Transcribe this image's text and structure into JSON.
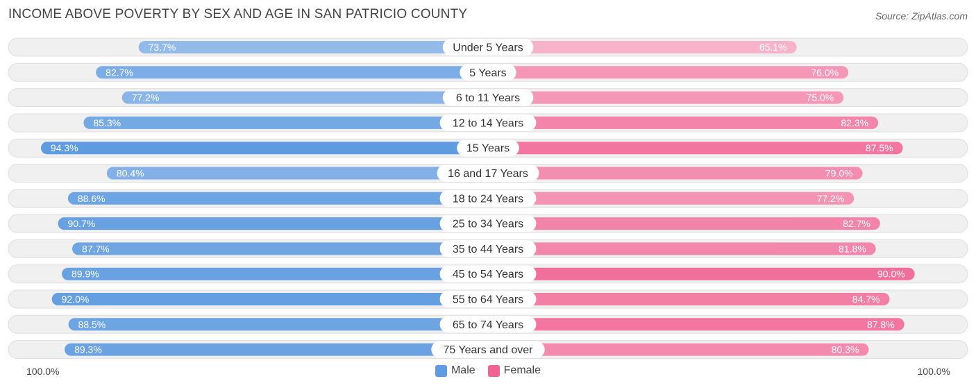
{
  "title": "INCOME ABOVE POVERTY BY SEX AND AGE IN SAN PATRICIO COUNTY",
  "source": "Source: ZipAtlas.com",
  "axis": {
    "left_label": "100.0%",
    "right_label": "100.0%"
  },
  "legend": {
    "male_label": "Male",
    "female_label": "Female"
  },
  "colors": {
    "male_light": "#a9c8ee",
    "male_dark": "#5e9be0",
    "female_light": "#f8b3cb",
    "female_dark": "#f06593",
    "track": "#f0f0f0",
    "track_border": "#dedede"
  },
  "chart_data": {
    "type": "bar",
    "orientation": "diverging-horizontal",
    "title": "INCOME ABOVE POVERTY BY SEX AND AGE IN SAN PATRICIO COUNTY",
    "xlim": [
      0,
      100
    ],
    "unit": "%",
    "categories": [
      "Under 5 Years",
      "5 Years",
      "6 to 11 Years",
      "12 to 14 Years",
      "15 Years",
      "16 and 17 Years",
      "18 to 24 Years",
      "25 to 34 Years",
      "35 to 44 Years",
      "45 to 54 Years",
      "55 to 64 Years",
      "65 to 74 Years",
      "75 Years and over"
    ],
    "series": [
      {
        "name": "Male",
        "values": [
          73.7,
          82.7,
          77.2,
          85.3,
          94.3,
          80.4,
          88.6,
          90.7,
          87.7,
          89.9,
          92.0,
          88.5,
          89.3
        ],
        "labels": [
          "73.7%",
          "82.7%",
          "77.2%",
          "85.3%",
          "94.3%",
          "80.4%",
          "88.6%",
          "90.7%",
          "87.7%",
          "89.9%",
          "92.0%",
          "88.5%",
          "89.3%"
        ]
      },
      {
        "name": "Female",
        "values": [
          65.1,
          76.0,
          75.0,
          82.3,
          87.5,
          79.0,
          77.2,
          82.7,
          81.8,
          90.0,
          84.7,
          87.8,
          80.3
        ],
        "labels": [
          "65.1%",
          "76.0%",
          "75.0%",
          "82.3%",
          "87.5%",
          "79.0%",
          "77.2%",
          "82.7%",
          "81.8%",
          "90.0%",
          "84.7%",
          "87.8%",
          "80.3%"
        ]
      }
    ]
  }
}
